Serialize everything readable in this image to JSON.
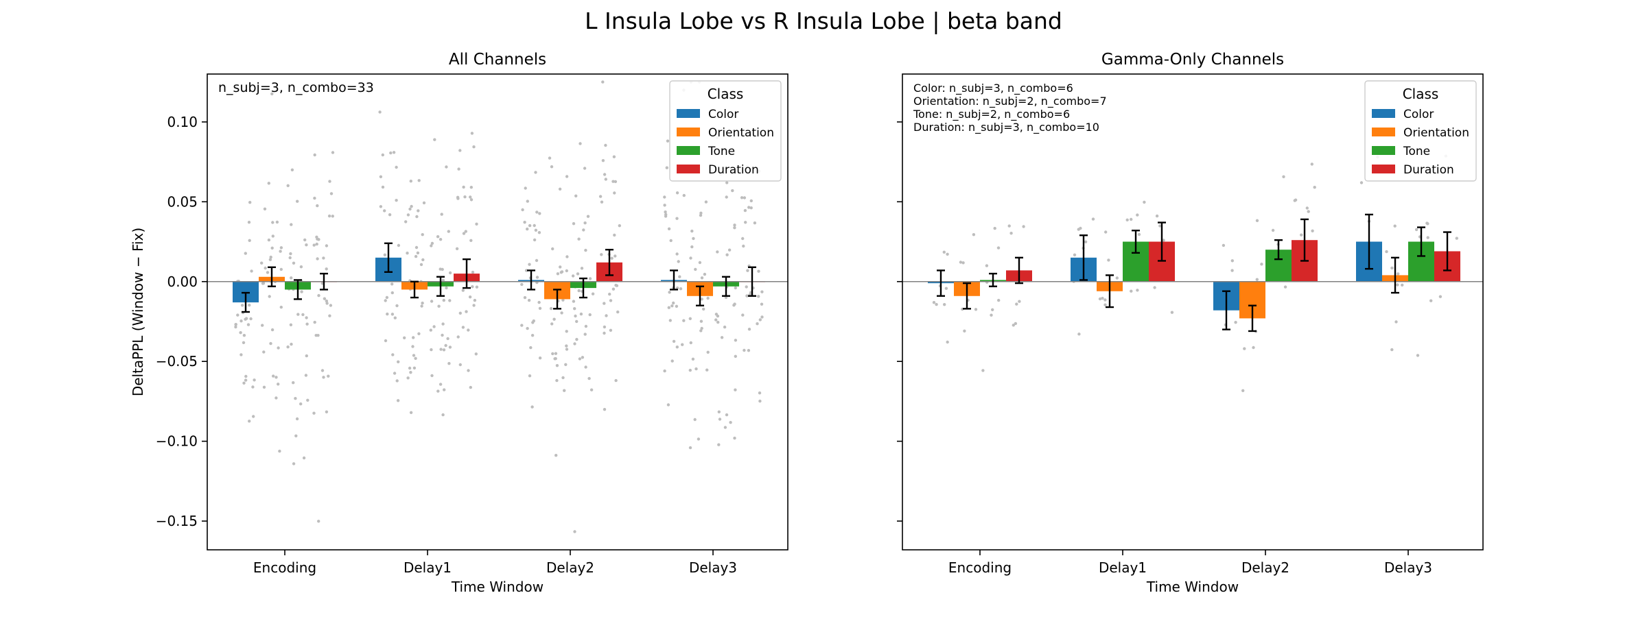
{
  "figure_title": "L Insula Lobe vs R Insula Lobe  |  beta band",
  "colors": {
    "Color": "#1f77b4",
    "Orientation": "#ff7f0e",
    "Tone": "#2ca02c",
    "Duration": "#d62728",
    "points": "#bdbdbd",
    "zero_line": "#808080"
  },
  "chart_data": [
    {
      "type": "bar",
      "title": "All Channels",
      "xlabel": "Time Window",
      "ylabel": "DeltaPPL (Window − Fix)",
      "ylim": [
        -0.168,
        0.13
      ],
      "yticks": [
        0.1,
        0.05,
        0.0,
        -0.05,
        -0.1,
        -0.15
      ],
      "ytick_labels": [
        "0.10",
        "0.05",
        "0.00",
        "−0.05",
        "−0.10",
        "−0.15"
      ],
      "show_yticklabels": true,
      "categories": [
        "Encoding",
        "Delay1",
        "Delay2",
        "Delay3"
      ],
      "legend": {
        "title": "Class",
        "placement": "upper right",
        "entries": [
          "Color",
          "Orientation",
          "Tone",
          "Duration"
        ]
      },
      "annotation": [
        "n_subj=3, n_combo=33"
      ],
      "series": [
        {
          "name": "Color",
          "values": [
            -0.013,
            0.015,
            0.001,
            0.001
          ],
          "err": [
            0.006,
            0.009,
            0.006,
            0.006
          ]
        },
        {
          "name": "Orientation",
          "values": [
            0.003,
            -0.005,
            -0.011,
            -0.009
          ],
          "err": [
            0.006,
            0.005,
            0.006,
            0.006
          ]
        },
        {
          "name": "Tone",
          "values": [
            -0.005,
            -0.003,
            -0.004,
            -0.003
          ],
          "err": [
            0.006,
            0.006,
            0.006,
            0.006
          ]
        },
        {
          "name": "Duration",
          "values": [
            0.0,
            0.005,
            0.012,
            0.0
          ],
          "err": [
            0.005,
            0.009,
            0.008,
            0.009
          ]
        }
      ]
    },
    {
      "type": "bar",
      "title": "Gamma-Only Channels",
      "xlabel": "Time Window",
      "ylabel": "",
      "ylim": [
        -0.168,
        0.13
      ],
      "yticks": [
        0.1,
        0.05,
        0.0,
        -0.05,
        -0.1,
        -0.15
      ],
      "ytick_labels": [],
      "show_yticklabels": false,
      "categories": [
        "Encoding",
        "Delay1",
        "Delay2",
        "Delay3"
      ],
      "legend": {
        "title": "Class",
        "placement": "upper right",
        "entries": [
          "Color",
          "Orientation",
          "Tone",
          "Duration"
        ]
      },
      "annotation": [
        "Color: n_subj=3, n_combo=6",
        "Orientation: n_subj=2, n_combo=7",
        "Tone: n_subj=2, n_combo=6",
        "Duration: n_subj=3, n_combo=10"
      ],
      "series": [
        {
          "name": "Color",
          "values": [
            -0.001,
            0.015,
            -0.018,
            0.025
          ],
          "err": [
            0.008,
            0.014,
            0.012,
            0.017
          ]
        },
        {
          "name": "Orientation",
          "values": [
            -0.009,
            -0.006,
            -0.023,
            0.004
          ],
          "err": [
            0.008,
            0.01,
            0.008,
            0.011
          ]
        },
        {
          "name": "Tone",
          "values": [
            0.001,
            0.025,
            0.02,
            0.025
          ],
          "err": [
            0.004,
            0.007,
            0.006,
            0.009
          ]
        },
        {
          "name": "Duration",
          "values": [
            0.007,
            0.025,
            0.026,
            0.019
          ],
          "err": [
            0.008,
            0.012,
            0.013,
            0.012
          ]
        }
      ]
    }
  ]
}
